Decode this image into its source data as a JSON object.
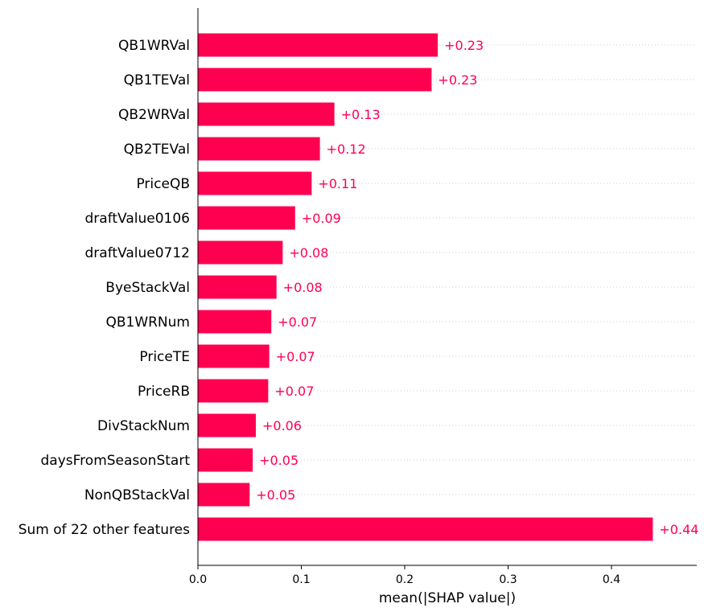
{
  "chart_data": {
    "type": "bar",
    "orientation": "horizontal",
    "categories": [
      "QB1WRVal",
      "QB1TEVal",
      "QB2WRVal",
      "QB2TEVal",
      "PriceQB",
      "draftValue0106",
      "draftValue0712",
      "ByeStackVal",
      "QB1WRNum",
      "PriceTE",
      "PriceRB",
      "DivStackNum",
      "daysFromSeasonStart",
      "NonQBStackVal",
      "Sum of 22 other features"
    ],
    "values": [
      0.232,
      0.226,
      0.132,
      0.118,
      0.11,
      0.094,
      0.082,
      0.076,
      0.071,
      0.069,
      0.068,
      0.056,
      0.053,
      0.05,
      0.44
    ],
    "value_labels": [
      "+0.23",
      "+0.23",
      "+0.13",
      "+0.12",
      "+0.11",
      "+0.09",
      "+0.08",
      "+0.08",
      "+0.07",
      "+0.07",
      "+0.07",
      "+0.06",
      "+0.05",
      "+0.05",
      "+0.44"
    ],
    "xticks": [
      0.0,
      0.1,
      0.2,
      0.3,
      0.4
    ],
    "xtick_labels": [
      "0.0",
      "0.1",
      "0.2",
      "0.3",
      "0.4"
    ],
    "xlim": [
      0,
      0.482
    ],
    "xlabel": "mean(|SHAP value|)",
    "ylabel": "",
    "title": "",
    "grid": "dotted horizontal guide lines per bar",
    "bar_color": "#ff0051",
    "label_color": "#ff0051"
  }
}
